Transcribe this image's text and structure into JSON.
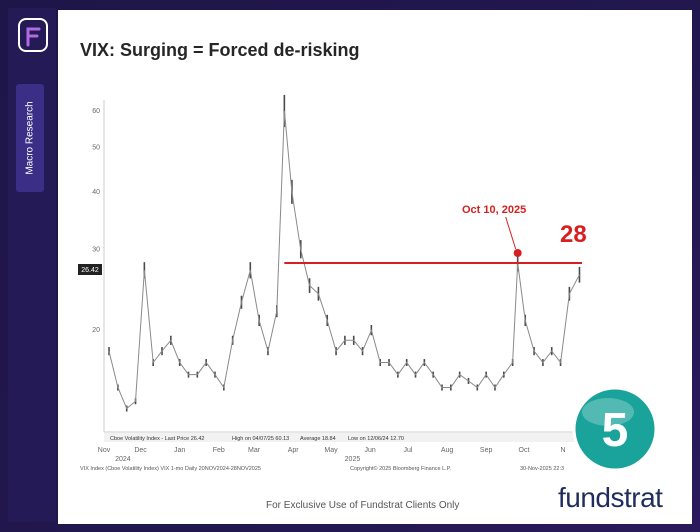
{
  "sidebar": {
    "tab_label": "Macro Research"
  },
  "slide": {
    "title": "VIX: Surging = Forced de-risking",
    "footer": "For Exclusive Use of Fundstrat Clients Only",
    "brand": "fundstrat",
    "badge_number": "5"
  },
  "colors": {
    "series": "#555555",
    "reference_line": "#d62020",
    "annotation": "#d62020",
    "navy": "#1f2d5c",
    "badge": "#1aa39a"
  },
  "chart_data": {
    "type": "line",
    "title": "",
    "xlabel": "",
    "ylabel": "",
    "y_scale": "log",
    "ylim": [
      12,
      66
    ],
    "y_ticks": [
      20,
      30,
      40,
      50,
      60
    ],
    "last_price_label": "26.42",
    "x_tick_labels": [
      "Nov",
      "Dec",
      "Jan",
      "Feb",
      "Mar",
      "Apr",
      "May",
      "Jun",
      "Jul",
      "Aug",
      "Sep",
      "Oct",
      "N"
    ],
    "x_year_labels": [
      "2024",
      "2025"
    ],
    "series": [
      {
        "x": [
          "2024-11-20",
          "2024-11-27",
          "2024-12-04",
          "2024-12-11",
          "2024-12-18",
          "2024-12-25",
          "2025-01-01",
          "2025-01-08",
          "2025-01-15",
          "2025-01-22",
          "2025-01-29",
          "2025-02-05",
          "2025-02-12",
          "2025-02-19",
          "2025-02-26",
          "2025-03-05",
          "2025-03-12",
          "2025-03-19",
          "2025-03-26",
          "2025-04-02",
          "2025-04-08",
          "2025-04-14",
          "2025-04-21",
          "2025-04-28",
          "2025-05-05",
          "2025-05-12",
          "2025-05-19",
          "2025-05-26",
          "2025-06-02",
          "2025-06-09",
          "2025-06-16",
          "2025-06-23",
          "2025-06-30",
          "2025-07-07",
          "2025-07-14",
          "2025-07-21",
          "2025-07-28",
          "2025-08-04",
          "2025-08-11",
          "2025-08-18",
          "2025-08-25",
          "2025-09-01",
          "2025-09-08",
          "2025-09-15",
          "2025-09-22",
          "2025-09-29",
          "2025-10-06",
          "2025-10-10",
          "2025-10-16",
          "2025-10-23",
          "2025-10-30",
          "2025-11-06",
          "2025-11-13",
          "2025-11-20",
          "2025-11-28"
        ],
        "values": [
          18,
          15,
          13.5,
          14,
          27,
          17,
          18,
          19,
          17,
          16,
          16,
          17,
          16,
          15,
          19,
          23,
          27,
          21,
          18,
          22,
          60,
          40,
          30,
          25,
          24,
          21,
          18,
          19,
          19,
          18,
          20,
          17,
          17,
          16,
          17,
          16,
          17,
          16,
          15,
          15,
          16,
          15.5,
          15,
          16,
          15,
          16,
          17,
          28,
          21,
          18,
          17,
          18,
          17,
          24,
          26.4
        ]
      }
    ],
    "reference_line": {
      "value": 28,
      "label": "28"
    },
    "annotations": [
      {
        "x": "2025-10-10",
        "y": 28,
        "label": "Oct 10, 2025"
      }
    ],
    "legend": {
      "items": [
        "Cboe Volatility Index - Last Price 26.42",
        "High on 04/07/25 60.13",
        "Average 18.84",
        "Low on 12/06/24 12.70"
      ]
    },
    "source_left": "VIX Index (Cboe Volatility Index) VIX 1-mo Daily 20NOV2024-28NOV2025",
    "source_center": "Copyright© 2025 Bloomberg Finance L.P.",
    "source_right": "30-Nov-2025 22:3"
  }
}
